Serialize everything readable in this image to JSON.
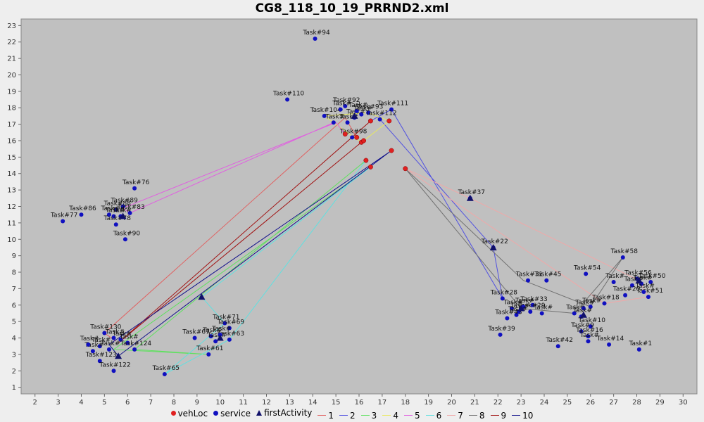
{
  "title": "CG8_118_10_19_PRRND2.xml",
  "chart_data": {
    "type": "scatter",
    "title": "CG8_118_10_19_PRRND2.xml",
    "xlabel": "",
    "ylabel": "",
    "xlim": [
      1.4,
      30.6
    ],
    "ylim": [
      0.6,
      23.4
    ],
    "x_ticks": [
      2,
      3,
      4,
      5,
      6,
      7,
      8,
      9,
      10,
      11,
      12,
      13,
      14,
      15,
      16,
      17,
      18,
      19,
      20,
      21,
      22,
      23,
      24,
      25,
      26,
      27,
      28,
      29,
      30
    ],
    "y_ticks": [
      1,
      2,
      3,
      4,
      5,
      6,
      7,
      8,
      9,
      10,
      11,
      12,
      13,
      14,
      15,
      16,
      17,
      18,
      19,
      20,
      21,
      22,
      23
    ],
    "grid": false,
    "legend_position": "bottom",
    "legend": [
      {
        "label": "vehLoc",
        "marker": "circle",
        "color": "#e02020"
      },
      {
        "label": "service",
        "marker": "circle",
        "color": "#1010c0"
      },
      {
        "label": "firstActivity",
        "marker": "triangle",
        "color": "#10106a"
      },
      {
        "label": "1",
        "marker": "line",
        "color": "#e06060"
      },
      {
        "label": "2",
        "marker": "line",
        "color": "#5050e0"
      },
      {
        "label": "3",
        "marker": "line",
        "color": "#60e060"
      },
      {
        "label": "4",
        "marker": "line",
        "color": "#e8e860"
      },
      {
        "label": "5",
        "marker": "line",
        "color": "#e060e0"
      },
      {
        "label": "6",
        "marker": "line",
        "color": "#60e0e0"
      },
      {
        "label": "7",
        "marker": "line",
        "color": "#f0a8a8"
      },
      {
        "label": "8",
        "marker": "line",
        "color": "#707070"
      },
      {
        "label": "9",
        "marker": "line",
        "color": "#a01010"
      },
      {
        "label": "10",
        "marker": "line",
        "color": "#10108a"
      }
    ],
    "vehLoc": [
      [
        15.9,
        16.2
      ],
      [
        16.5,
        17.2
      ],
      [
        17.3,
        17.2
      ],
      [
        16.1,
        15.9
      ],
      [
        16.2,
        16.0
      ],
      [
        16.3,
        14.8
      ],
      [
        16.5,
        14.4
      ],
      [
        17.4,
        15.4
      ],
      [
        18.0,
        14.3
      ],
      [
        15.4,
        16.4
      ]
    ],
    "service": [
      {
        "label": "Task#94",
        "x": 14.1,
        "y": 22.2
      },
      {
        "label": "Task#110",
        "x": 12.9,
        "y": 18.5
      },
      {
        "label": "Task#92",
        "x": 15.4,
        "y": 18.1
      },
      {
        "label": "Task#111",
        "x": 17.4,
        "y": 17.9
      },
      {
        "label": "Task#93",
        "x": 16.4,
        "y": 17.7
      },
      {
        "label": "Task#104",
        "x": 14.5,
        "y": 17.5
      },
      {
        "label": "Task#112",
        "x": 16.9,
        "y": 17.3
      },
      {
        "label": "Task#98",
        "x": 15.7,
        "y": 16.2
      },
      {
        "label": "Task#",
        "x": 14.9,
        "y": 17.1
      },
      {
        "label": "Task#",
        "x": 15.5,
        "y": 17.1
      },
      {
        "label": "Task#",
        "x": 15.8,
        "y": 17.4
      },
      {
        "label": "Task#",
        "x": 15.2,
        "y": 17.9
      },
      {
        "label": "Task#",
        "x": 15.9,
        "y": 17.8
      },
      {
        "label": "Task#",
        "x": 16.1,
        "y": 17.6
      },
      {
        "label": "Task#76",
        "x": 6.3,
        "y": 13.1
      },
      {
        "label": "Task#89",
        "x": 5.8,
        "y": 12.0
      },
      {
        "label": "Task#86",
        "x": 4.0,
        "y": 11.5
      },
      {
        "label": "Task#77",
        "x": 3.2,
        "y": 11.1
      },
      {
        "label": "Task#83",
        "x": 6.1,
        "y": 11.6
      },
      {
        "label": "Task#88",
        "x": 5.5,
        "y": 11.8
      },
      {
        "label": "Task#",
        "x": 5.2,
        "y": 11.5
      },
      {
        "label": "Task#",
        "x": 5.4,
        "y": 11.4
      },
      {
        "label": "Task#",
        "x": 5.7,
        "y": 11.4
      },
      {
        "label": "Task#78",
        "x": 5.5,
        "y": 10.9
      },
      {
        "label": "Task#90",
        "x": 5.9,
        "y": 10.0
      },
      {
        "label": "Task#37",
        "x": 20.8,
        "y": 12.5
      },
      {
        "label": "Task#22",
        "x": 21.8,
        "y": 9.5
      },
      {
        "label": "Task#58",
        "x": 27.4,
        "y": 8.9
      },
      {
        "label": "Task#54",
        "x": 25.8,
        "y": 7.9
      },
      {
        "label": "Task#31",
        "x": 23.3,
        "y": 7.5
      },
      {
        "label": "Task#45",
        "x": 24.1,
        "y": 7.5
      },
      {
        "label": "Task#56",
        "x": 28.0,
        "y": 7.6
      },
      {
        "label": "Task#50",
        "x": 28.6,
        "y": 7.4
      },
      {
        "label": "Task#",
        "x": 27.0,
        "y": 7.4
      },
      {
        "label": "Task#",
        "x": 27.8,
        "y": 7.2
      },
      {
        "label": "Task#",
        "x": 28.2,
        "y": 7.3
      },
      {
        "label": "Task#51",
        "x": 28.5,
        "y": 6.5
      },
      {
        "label": "Task#",
        "x": 28.3,
        "y": 6.8
      },
      {
        "label": "Task#20",
        "x": 27.5,
        "y": 6.6
      },
      {
        "label": "Task#18",
        "x": 26.6,
        "y": 6.1
      },
      {
        "label": "Task#28",
        "x": 22.2,
        "y": 6.4
      },
      {
        "label": "Task#33",
        "x": 23.5,
        "y": 6.0
      },
      {
        "label": "Task#29",
        "x": 23.4,
        "y": 5.6
      },
      {
        "label": "Task#",
        "x": 22.6,
        "y": 5.8
      },
      {
        "label": "Task#",
        "x": 22.9,
        "y": 5.6
      },
      {
        "label": "Task#",
        "x": 23.1,
        "y": 5.9
      },
      {
        "label": "Task#",
        "x": 22.8,
        "y": 5.4
      },
      {
        "label": "Task#43",
        "x": 22.4,
        "y": 5.2
      },
      {
        "label": "Task#",
        "x": 23.9,
        "y": 5.5
      },
      {
        "label": "Task#",
        "x": 25.3,
        "y": 5.5
      },
      {
        "label": "Task#",
        "x": 25.7,
        "y": 5.8
      },
      {
        "label": "Task#",
        "x": 26.0,
        "y": 5.9
      },
      {
        "label": "Task#",
        "x": 25.6,
        "y": 5.3
      },
      {
        "label": "Task#10",
        "x": 26.0,
        "y": 4.7
      },
      {
        "label": "Task#9",
        "x": 25.6,
        "y": 4.4
      },
      {
        "label": "Task#16",
        "x": 25.9,
        "y": 4.1
      },
      {
        "label": "Task#39",
        "x": 22.1,
        "y": 4.2
      },
      {
        "label": "Task#42",
        "x": 24.6,
        "y": 3.5
      },
      {
        "label": "Task#",
        "x": 25.9,
        "y": 3.8
      },
      {
        "label": "Task#14",
        "x": 26.8,
        "y": 3.6
      },
      {
        "label": "Task#1",
        "x": 28.1,
        "y": 3.3
      },
      {
        "label": "Task#71",
        "x": 10.2,
        "y": 4.9
      },
      {
        "label": "Task#69",
        "x": 10.4,
        "y": 4.6
      },
      {
        "label": "Task#67",
        "x": 8.9,
        "y": 4.0
      },
      {
        "label": "Task#63",
        "x": 10.4,
        "y": 3.9
      },
      {
        "label": "Task#",
        "x": 9.6,
        "y": 4.1
      },
      {
        "label": "Task#",
        "x": 9.8,
        "y": 3.8
      },
      {
        "label": "Task#",
        "x": 10.0,
        "y": 4.2
      },
      {
        "label": "Task#61",
        "x": 9.5,
        "y": 3.0
      },
      {
        "label": "Task#65",
        "x": 7.6,
        "y": 1.8
      },
      {
        "label": "Task#130",
        "x": 5.0,
        "y": 4.3
      },
      {
        "label": "Task#",
        "x": 5.4,
        "y": 4.0
      },
      {
        "label": "Task#",
        "x": 5.7,
        "y": 3.9
      },
      {
        "label": "Task#",
        "x": 6.0,
        "y": 3.7
      },
      {
        "label": "Task#124",
        "x": 6.3,
        "y": 3.3
      },
      {
        "label": "Task#",
        "x": 4.8,
        "y": 3.5
      },
      {
        "label": "Task#",
        "x": 5.2,
        "y": 3.3
      },
      {
        "label": "Task#",
        "x": 4.5,
        "y": 3.2
      },
      {
        "label": "Task#",
        "x": 4.3,
        "y": 3.6
      },
      {
        "label": "Task#123",
        "x": 4.8,
        "y": 2.6
      },
      {
        "label": "Task#122",
        "x": 5.4,
        "y": 2.0
      }
    ],
    "firstActivity": [
      [
        5.8,
        11.4
      ],
      [
        20.8,
        12.5
      ],
      [
        21.8,
        9.5
      ],
      [
        9.2,
        6.5
      ],
      [
        5.6,
        2.9
      ],
      [
        10.0,
        4.0
      ],
      [
        28.1,
        7.5
      ],
      [
        25.7,
        5.4
      ],
      [
        23.0,
        5.8
      ],
      [
        15.8,
        17.5
      ]
    ],
    "routes": [
      {
        "name": "1",
        "color": "#e06060",
        "points": [
          [
            15.9,
            16.2
          ],
          [
            15.4,
            17.4
          ],
          [
            5.0,
            4.3
          ],
          [
            5.5,
            3.8
          ]
        ]
      },
      {
        "name": "2",
        "color": "#5050e0",
        "points": [
          [
            16.5,
            17.2
          ],
          [
            17.4,
            17.9
          ],
          [
            22.2,
            6.4
          ],
          [
            21.8,
            9.5
          ],
          [
            16.9,
            17.3
          ]
        ]
      },
      {
        "name": "3",
        "color": "#60e060",
        "points": [
          [
            16.3,
            14.8
          ],
          [
            6.3,
            3.3
          ],
          [
            9.5,
            3.0
          ],
          [
            5.4,
            3.3
          ],
          [
            16.5,
            14.4
          ]
        ]
      },
      {
        "name": "4",
        "color": "#e8e860",
        "points": [
          [
            16.1,
            15.9
          ],
          [
            14.5,
            17.5
          ],
          [
            16.4,
            17.7
          ],
          [
            17.3,
            17.2
          ],
          [
            16.2,
            16.0
          ]
        ]
      },
      {
        "name": "5",
        "color": "#e060e0",
        "points": [
          [
            15.4,
            16.4
          ],
          [
            15.0,
            17.1
          ],
          [
            5.8,
            11.9
          ],
          [
            6.1,
            11.6
          ],
          [
            14.9,
            17.1
          ]
        ]
      },
      {
        "name": "6",
        "color": "#60e0e0",
        "points": [
          [
            16.5,
            14.4
          ],
          [
            9.2,
            6.5
          ],
          [
            10.2,
            4.9
          ],
          [
            7.6,
            1.8
          ],
          [
            10.4,
            3.9
          ],
          [
            16.3,
            14.8
          ]
        ]
      },
      {
        "name": "7",
        "color": "#f0a8a8",
        "points": [
          [
            18.0,
            14.3
          ],
          [
            20.8,
            12.5
          ],
          [
            28.1,
            7.5
          ],
          [
            28.5,
            6.5
          ],
          [
            26.6,
            6.1
          ],
          [
            18.0,
            14.3
          ]
        ]
      },
      {
        "name": "8",
        "color": "#707070",
        "points": [
          [
            18.0,
            14.3
          ],
          [
            23.0,
            5.8
          ],
          [
            25.3,
            5.5
          ],
          [
            27.4,
            8.9
          ],
          [
            26.0,
            5.9
          ],
          [
            23.1,
            7.5
          ],
          [
            18.0,
            14.3
          ]
        ]
      },
      {
        "name": "9",
        "color": "#a01010",
        "points": [
          [
            16.5,
            17.2
          ],
          [
            5.6,
            3.7
          ],
          [
            16.1,
            15.9
          ]
        ]
      },
      {
        "name": "10",
        "color": "#10108a",
        "points": [
          [
            17.4,
            15.4
          ],
          [
            5.6,
            2.9
          ],
          [
            5.2,
            3.6
          ],
          [
            17.3,
            15.3
          ]
        ]
      }
    ]
  }
}
